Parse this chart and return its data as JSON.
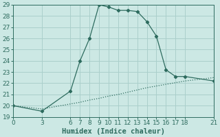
{
  "xlabel": "Humidex (Indice chaleur)",
  "line1_x": [
    0,
    3,
    6,
    7,
    8,
    9,
    10,
    11,
    12,
    13,
    14,
    15,
    16,
    17,
    18,
    21
  ],
  "line1_y": [
    20.0,
    19.5,
    21.3,
    24.0,
    26.0,
    29.0,
    28.8,
    28.5,
    28.5,
    28.4,
    27.5,
    26.2,
    23.2,
    22.6,
    22.6,
    22.2
  ],
  "line2_x": [
    0,
    3,
    6,
    7,
    8,
    9,
    10,
    11,
    12,
    13,
    14,
    15,
    16,
    17,
    18,
    21
  ],
  "line2_y": [
    20.0,
    19.7,
    20.15,
    20.3,
    20.5,
    20.65,
    20.85,
    21.0,
    21.2,
    21.4,
    21.6,
    21.75,
    21.9,
    22.05,
    22.2,
    22.5
  ],
  "line_color": "#2d6b5e",
  "bg_color": "#cce8e4",
  "grid_color": "#aacfcb",
  "xlim": [
    0,
    21
  ],
  "ylim": [
    19,
    29
  ],
  "yticks": [
    19,
    20,
    21,
    22,
    23,
    24,
    25,
    26,
    27,
    28,
    29
  ],
  "xticks": [
    0,
    3,
    6,
    7,
    8,
    9,
    10,
    11,
    12,
    13,
    14,
    15,
    16,
    17,
    18,
    21
  ],
  "tick_fontsize": 6.5,
  "label_fontsize": 7.5
}
